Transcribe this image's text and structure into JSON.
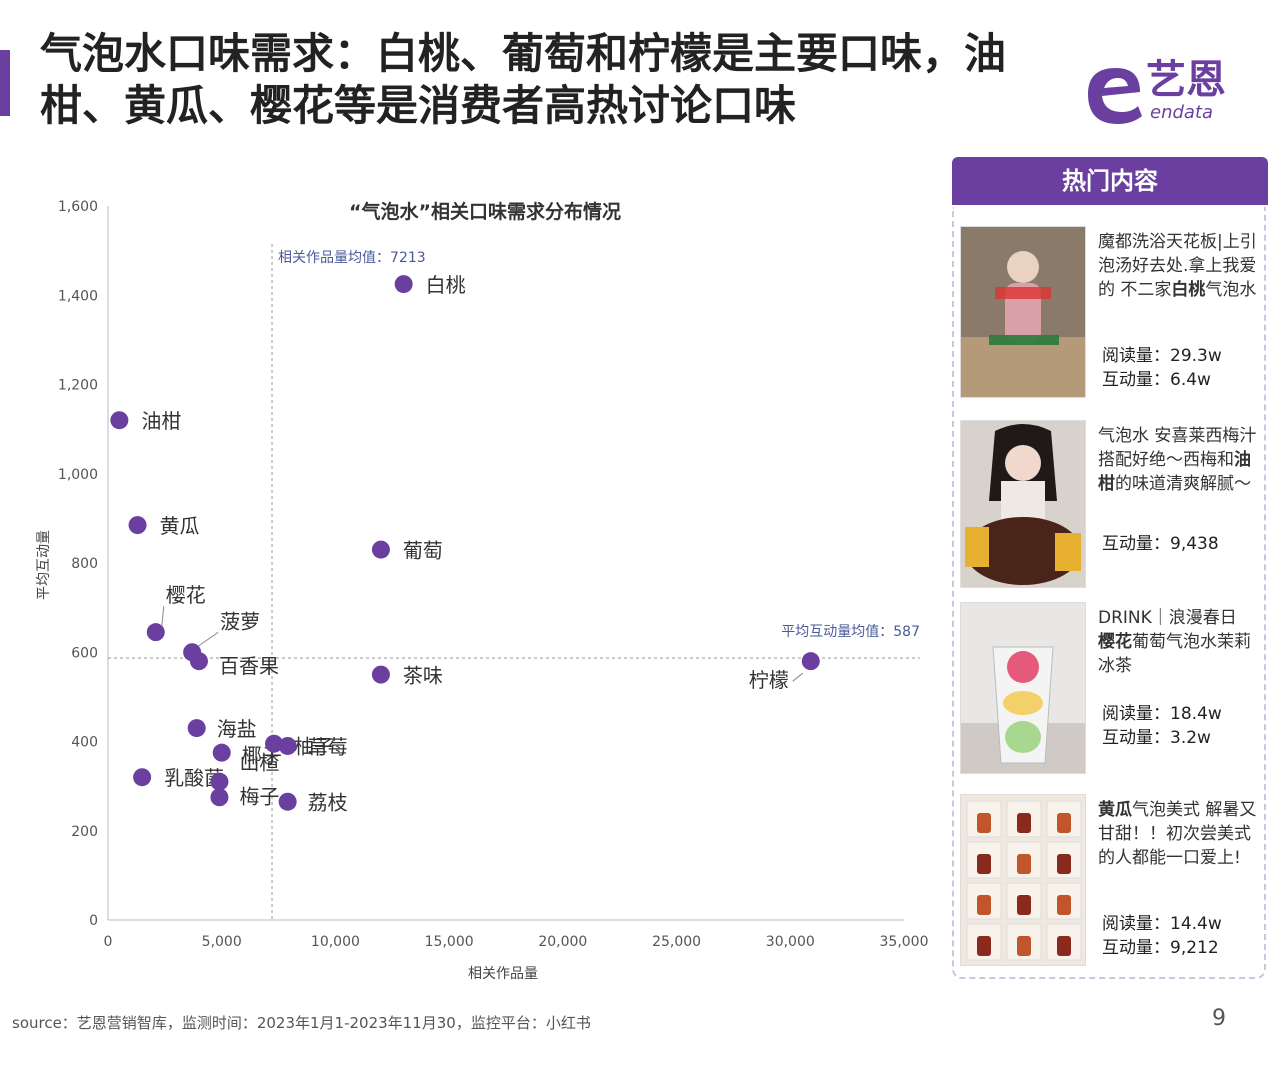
{
  "header": {
    "title": "气泡水口味需求：白桃、葡萄和柠檬是主要口味，油柑、黄瓜、樱花等是消费者高热讨论口味",
    "logo_text": "艺恩",
    "logo_sub": "endata"
  },
  "colors": {
    "accent": "#6b3fa0",
    "point": "#6b3fa0",
    "axis": "#bbbbbb",
    "refline": "#999999",
    "ref_label": "#4a5a9a"
  },
  "chart_data": {
    "type": "scatter",
    "title": "“气泡水”相关口味需求分布情况",
    "xlabel": "相关作品量",
    "ylabel": "平均互动量",
    "xlim": [
      0,
      35000
    ],
    "ylim": [
      0,
      1600
    ],
    "x_ticks": [
      0,
      5000,
      10000,
      15000,
      20000,
      25000,
      30000,
      35000
    ],
    "x_tick_labels": [
      "0",
      "5,000",
      "10,000",
      "15,000",
      "20,000",
      "25,000",
      "30,000",
      "35,000"
    ],
    "y_ticks": [
      0,
      200,
      400,
      600,
      800,
      1000,
      1200,
      1400,
      1600
    ],
    "y_tick_labels": [
      "0",
      "200",
      "400",
      "600",
      "800",
      "1,000",
      "1,200",
      "1,400",
      "1,600"
    ],
    "grid": false,
    "reference_lines": {
      "x_mean": 7213,
      "x_mean_label": "相关作品量均值：7213",
      "y_mean": 587,
      "y_mean_label": "平均互动量均值：587"
    },
    "points": [
      {
        "label": "白桃",
        "x": 13000,
        "y": 1425
      },
      {
        "label": "油柑",
        "x": 500,
        "y": 1120
      },
      {
        "label": "黄瓜",
        "x": 1300,
        "y": 885
      },
      {
        "label": "葡萄",
        "x": 12000,
        "y": 830
      },
      {
        "label": "樱花",
        "x": 2100,
        "y": 645
      },
      {
        "label": "菠萝",
        "x": 3700,
        "y": 600
      },
      {
        "label": "百香果",
        "x": 4000,
        "y": 580
      },
      {
        "label": "茶味",
        "x": 12000,
        "y": 550
      },
      {
        "label": "柠檬",
        "x": 30900,
        "y": 580
      },
      {
        "label": "海盐",
        "x": 3900,
        "y": 430
      },
      {
        "label": "椰子",
        "x": 5000,
        "y": 375
      },
      {
        "label": "柚子",
        "x": 7300,
        "y": 395
      },
      {
        "label": "草莓",
        "x": 7900,
        "y": 390
      },
      {
        "label": "乳酸菌",
        "x": 1500,
        "y": 320
      },
      {
        "label": "山楂",
        "x": 4900,
        "y": 310
      },
      {
        "label": "梅子",
        "x": 4900,
        "y": 275
      },
      {
        "label": "荔枝",
        "x": 7900,
        "y": 265
      }
    ]
  },
  "panel": {
    "header": "热门内容",
    "posts": [
      {
        "text_before": "魔都洗浴天花板|上引  泡汤好去处.拿上我爱的  不二家",
        "highlight": "白桃",
        "text_after": "气泡水",
        "stats": [
          "阅读量：29.3w",
          "互动量：6.4w"
        ]
      },
      {
        "text_before": "气泡水  安喜莱西梅汁搭配好绝～西梅和",
        "highlight": "油柑",
        "text_after": "的味道清爽解腻～",
        "stats": [
          "互动量：9,438"
        ]
      },
      {
        "text_before": "DRINK｜浪漫春日",
        "highlight": "樱花",
        "text_after": "葡萄气泡水茉莉冰茶",
        "stats": [
          "阅读量：18.4w",
          "互动量：3.2w"
        ]
      },
      {
        "text_before": "",
        "highlight": "黄瓜",
        "text_after": "气泡美式 解暑又甘甜！！初次尝美式的人都能一口爱上!",
        "stats": [
          "阅读量：14.4w",
          "互动量：9,212"
        ]
      }
    ]
  },
  "footer": {
    "source": "source：艺恩营销智库，监测时间：2023年1月1-2023年11月30，监控平台：小红书",
    "page_number": "9"
  }
}
